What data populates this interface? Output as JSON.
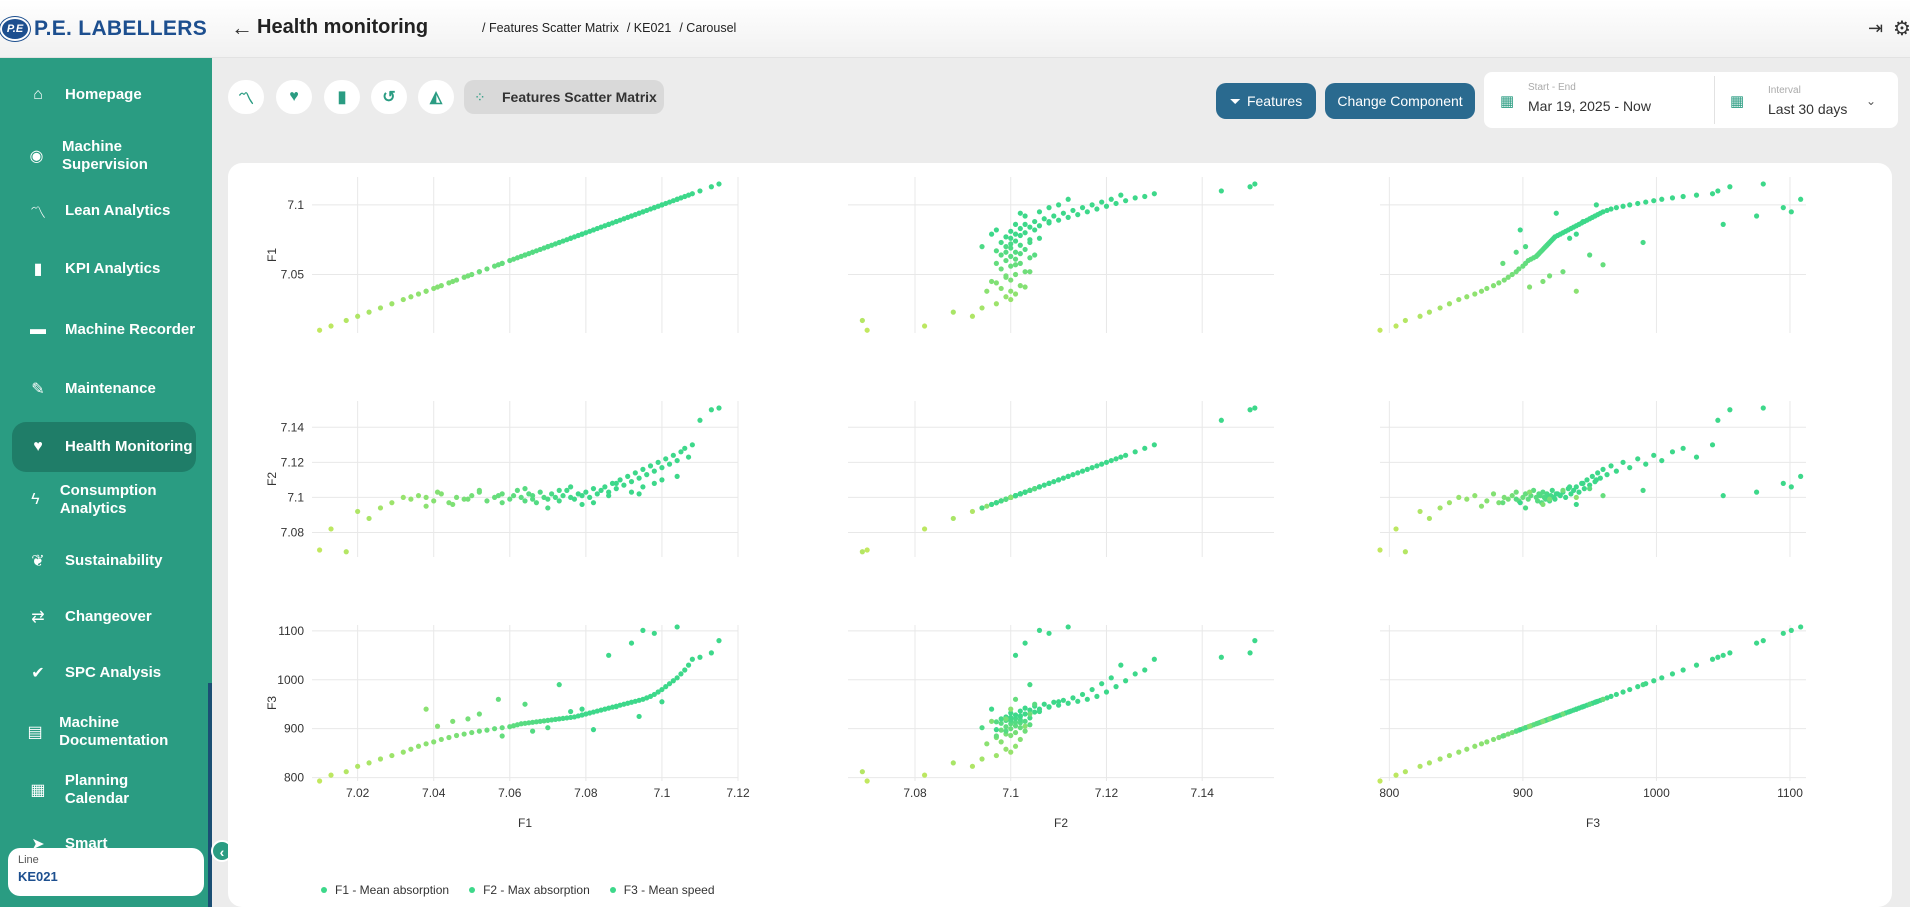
{
  "header": {
    "logo_badge": "P.E",
    "logo_text": "P.E. LABELLERS",
    "title": "Health monitoring",
    "breadcrumbs": [
      "/ Features Scatter Matrix",
      "/ KE021",
      "/ Carousel"
    ],
    "icons": {
      "back": "arrow-left-icon",
      "logout": "logout-icon",
      "settings": "gear-icon"
    }
  },
  "sidebar": {
    "items": [
      {
        "label": "Homepage",
        "icon": "home-icon",
        "glyph": "⌂"
      },
      {
        "label": "Machine Supervision",
        "icon": "eye-icon",
        "glyph": "◉"
      },
      {
        "label": "Lean Analytics",
        "icon": "trend-line-icon",
        "glyph": "〽"
      },
      {
        "label": "KPI Analytics",
        "icon": "bar-chart-icon",
        "glyph": "▮"
      },
      {
        "label": "Machine Recorder",
        "icon": "recorder-icon",
        "glyph": "▬"
      },
      {
        "label": "Maintenance",
        "icon": "wrench-icon",
        "glyph": "✎"
      },
      {
        "label": "Health Monitoring",
        "icon": "heart-pulse-icon",
        "glyph": "♥",
        "active": true
      },
      {
        "label": "Consumption Analytics",
        "icon": "bolt-icon",
        "glyph": "ϟ"
      },
      {
        "label": "Sustainability",
        "icon": "leaf-icon",
        "glyph": "❦"
      },
      {
        "label": "Changeover",
        "icon": "swap-icon",
        "glyph": "⇄"
      },
      {
        "label": "SPC Analysis",
        "icon": "check-list-icon",
        "glyph": "✔"
      },
      {
        "label": "Machine Documentation",
        "icon": "document-icon",
        "glyph": "▤"
      },
      {
        "label": "Planning Calendar",
        "icon": "calendar-icon",
        "glyph": "▦"
      },
      {
        "label": "Smart",
        "icon": "send-icon",
        "glyph": "➤"
      }
    ],
    "line_card": {
      "caption": "Line",
      "value": "KE021"
    },
    "collapse_glyph": "‹"
  },
  "toolbar": {
    "tabs": [
      {
        "name": "tab-trend",
        "icon": "trend-icon",
        "glyph": "〽"
      },
      {
        "name": "tab-health",
        "icon": "heart-pulse-icon",
        "glyph": "♥"
      },
      {
        "name": "tab-bars",
        "icon": "bar-chart-icon",
        "glyph": "▮"
      },
      {
        "name": "tab-history",
        "icon": "history-icon",
        "glyph": "↺"
      },
      {
        "name": "tab-area",
        "icon": "area-chart-icon",
        "glyph": "◭"
      }
    ],
    "active_tab": {
      "label": "Features Scatter Matrix",
      "icon": "scatter-icon",
      "glyph": "⁘"
    },
    "features_label": "Features",
    "features_icon": "filter-icon",
    "change_component_label": "Change Component"
  },
  "date_filter": {
    "range_caption": "Start - End",
    "range_value": "Mar 19, 2025 - Now",
    "interval_caption": "Interval",
    "interval_value": "Last 30 days",
    "icon": "calendar-icon"
  },
  "chart_data": {
    "type": "scatter",
    "variables": [
      "F1",
      "F2",
      "F3"
    ],
    "colors": {
      "low": "#c6e85e",
      "high": "#3dd88a",
      "grid": "#e8e8e8"
    },
    "axes": {
      "F1": {
        "range": [
          7.008,
          7.12
        ],
        "ticks": [
          7.02,
          7.04,
          7.06,
          7.08,
          7.1,
          7.12
        ],
        "row_ticks": [
          7.05,
          7.1
        ]
      },
      "F2": {
        "range": [
          7.066,
          7.155
        ],
        "ticks": [
          7.08,
          7.1,
          7.12,
          7.14
        ],
        "row_ticks": [
          7.08,
          7.1,
          7.12,
          7.14
        ]
      },
      "F3": {
        "range": [
          793,
          1112
        ],
        "ticks": [
          800,
          900,
          1000,
          1100
        ],
        "row_ticks": [
          800,
          900,
          1000,
          1100
        ]
      }
    },
    "points": [
      [
        7.01,
        7.07,
        793
      ],
      [
        7.013,
        7.082,
        805
      ],
      [
        7.017,
        7.069,
        812
      ],
      [
        7.02,
        7.092,
        823
      ],
      [
        7.023,
        7.088,
        830
      ],
      [
        7.026,
        7.094,
        838
      ],
      [
        7.029,
        7.097,
        845
      ],
      [
        7.032,
        7.1,
        852
      ],
      [
        7.034,
        7.099,
        858
      ],
      [
        7.036,
        7.101,
        864
      ],
      [
        7.038,
        7.095,
        869
      ],
      [
        7.04,
        7.098,
        873
      ],
      [
        7.042,
        7.102,
        878
      ],
      [
        7.044,
        7.097,
        882
      ],
      [
        7.046,
        7.1,
        886
      ],
      [
        7.048,
        7.099,
        889
      ],
      [
        7.05,
        7.101,
        892
      ],
      [
        7.052,
        7.103,
        895
      ],
      [
        7.054,
        7.098,
        897
      ],
      [
        7.056,
        7.1,
        900
      ],
      [
        7.058,
        7.102,
        902
      ],
      [
        7.06,
        7.099,
        904
      ],
      [
        7.061,
        7.101,
        906
      ],
      [
        7.062,
        7.104,
        908
      ],
      [
        7.063,
        7.1,
        910
      ],
      [
        7.064,
        7.098,
        911
      ],
      [
        7.065,
        7.102,
        912
      ],
      [
        7.066,
        7.101,
        913
      ],
      [
        7.067,
        7.097,
        914
      ],
      [
        7.068,
        7.103,
        915
      ],
      [
        7.069,
        7.1,
        916
      ],
      [
        7.07,
        7.099,
        917
      ],
      [
        7.071,
        7.102,
        918
      ],
      [
        7.072,
        7.1,
        919
      ],
      [
        7.073,
        7.098,
        920
      ],
      [
        7.074,
        7.101,
        921
      ],
      [
        7.075,
        7.104,
        922
      ],
      [
        7.076,
        7.1,
        923
      ],
      [
        7.077,
        7.099,
        924
      ],
      [
        7.078,
        7.102,
        926
      ],
      [
        7.079,
        7.101,
        928
      ],
      [
        7.08,
        7.103,
        930
      ],
      [
        7.081,
        7.1,
        932
      ],
      [
        7.082,
        7.105,
        934
      ],
      [
        7.083,
        7.102,
        936
      ],
      [
        7.084,
        7.104,
        938
      ],
      [
        7.085,
        7.106,
        940
      ],
      [
        7.086,
        7.103,
        942
      ],
      [
        7.087,
        7.108,
        944
      ],
      [
        7.088,
        7.105,
        946
      ],
      [
        7.089,
        7.11,
        948
      ],
      [
        7.09,
        7.107,
        950
      ],
      [
        7.091,
        7.112,
        952
      ],
      [
        7.092,
        7.109,
        954
      ],
      [
        7.093,
        7.114,
        956
      ],
      [
        7.094,
        7.111,
        958
      ],
      [
        7.095,
        7.116,
        960
      ],
      [
        7.096,
        7.113,
        963
      ],
      [
        7.097,
        7.118,
        966
      ],
      [
        7.098,
        7.115,
        970
      ],
      [
        7.099,
        7.12,
        975
      ],
      [
        7.1,
        7.117,
        980
      ],
      [
        7.101,
        7.122,
        986
      ],
      [
        7.102,
        7.119,
        992
      ],
      [
        7.103,
        7.124,
        998
      ],
      [
        7.104,
        7.121,
        1004
      ],
      [
        7.105,
        7.126,
        1012
      ],
      [
        7.106,
        7.128,
        1020
      ],
      [
        7.107,
        7.123,
        1030
      ],
      [
        7.108,
        7.13,
        1042
      ],
      [
        7.045,
        7.096,
        915
      ],
      [
        7.052,
        7.104,
        930
      ],
      [
        7.058,
        7.097,
        885
      ],
      [
        7.064,
        7.105,
        950
      ],
      [
        7.07,
        7.094,
        902
      ],
      [
        7.076,
        7.106,
        935
      ],
      [
        7.082,
        7.097,
        898
      ],
      [
        7.088,
        7.108,
        945
      ],
      [
        7.094,
        7.102,
        925
      ],
      [
        7.1,
        7.11,
        955
      ],
      [
        7.038,
        7.1,
        940
      ],
      [
        7.041,
        7.103,
        905
      ],
      [
        7.049,
        7.099,
        920
      ],
      [
        7.057,
        7.101,
        960
      ],
      [
        7.066,
        7.099,
        895
      ],
      [
        7.073,
        7.104,
        990
      ],
      [
        7.079,
        7.096,
        940
      ],
      [
        7.086,
        7.101,
        1050
      ],
      [
        7.092,
        7.103,
        1075
      ],
      [
        7.098,
        7.108,
        1095
      ],
      [
        7.11,
        7.144,
        1046
      ],
      [
        7.113,
        7.15,
        1055
      ],
      [
        7.115,
        7.151,
        1080
      ],
      [
        7.095,
        7.106,
        1101
      ],
      [
        7.104,
        7.112,
        1108
      ]
    ]
  },
  "legend": [
    "F1 - Mean absorption",
    "F2 - Max absorption",
    "F3 - Mean speed"
  ]
}
